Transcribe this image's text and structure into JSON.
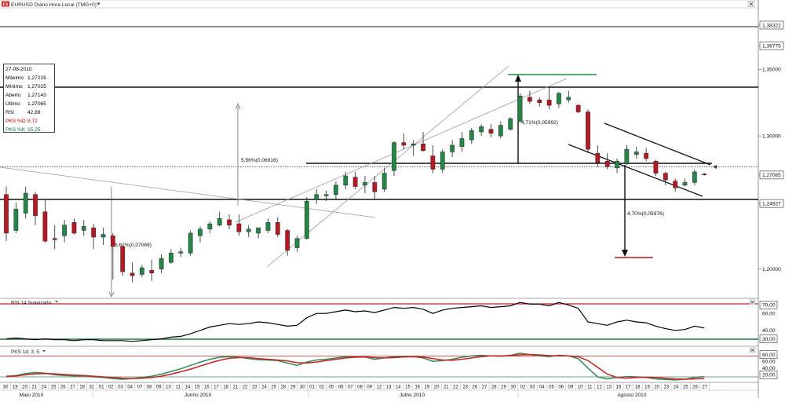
{
  "window": {
    "title": "EURUSD Diário Hora Local (TMG+0)",
    "logo_text": "FX"
  },
  "info_box": {
    "date": "27-08-2010",
    "rows": [
      {
        "label": "Máximo",
        "value": "1,27215",
        "color": "#000000"
      },
      {
        "label": "Mínimo",
        "value": "1,27025",
        "color": "#000000"
      },
      {
        "label": "Aberto",
        "value": "1,27143",
        "color": "#000000"
      },
      {
        "label": "Último",
        "value": "1,27065",
        "color": "#000000"
      },
      {
        "label": "RSI",
        "value": "42,89",
        "color": "#000000"
      },
      {
        "label": "PKS %D",
        "value": "8,72",
        "color": "#cc0000"
      },
      {
        "label": "PKS %K",
        "value": "15,25",
        "color": "#007a3d"
      }
    ]
  },
  "price_axis": {
    "labels": [
      "1,38322",
      "1,36775",
      "1,35000",
      "1,30000",
      "1,27065",
      "1,24927",
      "1,20000"
    ],
    "highlight_labels": [
      "1,38322",
      "1,36775",
      "1,27065",
      "1,24927"
    ]
  },
  "rsi_panel": {
    "title": "RSI 14 Suavizado",
    "axis_labels": [
      "70,00",
      "60,00",
      "40,00",
      "30,00"
    ],
    "highlight_labels": [
      "70,00",
      "30,00"
    ]
  },
  "pks_panel": {
    "title": "PKS 14; 3; 5",
    "axis_labels": [
      "80,00",
      "60,00",
      "40,00",
      "20,00"
    ],
    "highlight_labels": [
      "80,00",
      "20,00"
    ]
  },
  "date_axis": {
    "days": [
      "30",
      "19",
      "20",
      "21",
      "24",
      "25",
      "26",
      "27",
      "28",
      "31",
      "01",
      "02",
      "03",
      "04",
      "07",
      "08",
      "09",
      "10",
      "11",
      "14",
      "15",
      "16",
      "17",
      "18",
      "21",
      "22",
      "23",
      "24",
      "25",
      "28",
      "29",
      "30",
      "01",
      "02",
      "05",
      "06",
      "07",
      "08",
      "09",
      "12",
      "13",
      "14",
      "15",
      "16",
      "19",
      "20",
      "21",
      "22",
      "23",
      "26",
      "27",
      "28",
      "29",
      "30",
      "02",
      "03",
      "04",
      "05",
      "06",
      "09",
      "10",
      "11",
      "12",
      "13",
      "16",
      "17",
      "18",
      "19",
      "20",
      "23",
      "24",
      "25",
      "26",
      "27"
    ],
    "months": [
      "Maio 2010",
      "Junho 2010",
      "Julho 2010",
      "Agosto 2010"
    ]
  },
  "annotations": {
    "rise_pct": "5,56%(0,06916)",
    "fall_pct": "5,62%(0,07069)",
    "top_pct": "4,71%(0,05992)",
    "target_pct": "4,70%(0,05976)"
  },
  "colors": {
    "bull": "#1e8a44",
    "bear": "#c0141e",
    "rsi_line": "#000000",
    "pks_k": "#2e8b57",
    "pks_d": "#d11f1f",
    "channel": "#999999"
  },
  "chart_data": [
    {
      "type": "candlestick",
      "title": "EURUSD Diário",
      "dates": [
        "19 Mai",
        "20 Mai",
        "21 Mai",
        "24 Mai",
        "25 Mai",
        "26 Mai",
        "27 Mai",
        "28 Mai",
        "31 Mai",
        "01 Jun",
        "02 Jun",
        "03 Jun",
        "04 Jun",
        "07 Jun",
        "08 Jun",
        "09 Jun",
        "10 Jun",
        "11 Jun",
        "14 Jun",
        "15 Jun",
        "16 Jun",
        "17 Jun",
        "18 Jun",
        "21 Jun",
        "22 Jun",
        "23 Jun",
        "24 Jun",
        "25 Jun",
        "28 Jun",
        "29 Jun",
        "30 Jun",
        "01 Jul",
        "02 Jul",
        "05 Jul",
        "06 Jul",
        "07 Jul",
        "08 Jul",
        "09 Jul",
        "12 Jul",
        "13 Jul",
        "14 Jul",
        "15 Jul",
        "16 Jul",
        "19 Jul",
        "20 Jul",
        "21 Jul",
        "22 Jul",
        "23 Jul",
        "26 Jul",
        "27 Jul",
        "28 Jul",
        "29 Jul",
        "30 Jul",
        "02 Ago",
        "03 Ago",
        "04 Ago",
        "05 Ago",
        "06 Ago",
        "09 Ago",
        "10 Ago",
        "11 Ago",
        "12 Ago",
        "13 Ago",
        "16 Ago",
        "17 Ago",
        "18 Ago",
        "19 Ago",
        "20 Ago",
        "23 Ago",
        "24 Ago",
        "25 Ago",
        "26 Ago",
        "27 Ago"
      ],
      "ohlc": [
        [
          1.256,
          1.262,
          1.221,
          1.227
        ],
        [
          1.229,
          1.25,
          1.227,
          1.245
        ],
        [
          1.242,
          1.262,
          1.238,
          1.257
        ],
        [
          1.256,
          1.258,
          1.233,
          1.24
        ],
        [
          1.243,
          1.252,
          1.22,
          1.221
        ],
        [
          1.223,
          1.233,
          1.215,
          1.222
        ],
        [
          1.225,
          1.237,
          1.22,
          1.233
        ],
        [
          1.235,
          1.238,
          1.226,
          1.227
        ],
        [
          1.229,
          1.237,
          1.225,
          1.232
        ],
        [
          1.231,
          1.234,
          1.215,
          1.224
        ],
        [
          1.224,
          1.231,
          1.218,
          1.226
        ],
        [
          1.225,
          1.227,
          1.192,
          1.217
        ],
        [
          1.217,
          1.218,
          1.195,
          1.198
        ],
        [
          1.197,
          1.205,
          1.19,
          1.195
        ],
        [
          1.196,
          1.203,
          1.194,
          1.201
        ],
        [
          1.199,
          1.207,
          1.191,
          1.197
        ],
        [
          1.2,
          1.211,
          1.197,
          1.208
        ],
        [
          1.205,
          1.215,
          1.204,
          1.212
        ],
        [
          1.212,
          1.216,
          1.209,
          1.213
        ],
        [
          1.212,
          1.229,
          1.21,
          1.227
        ],
        [
          1.225,
          1.232,
          1.22,
          1.23
        ],
        [
          1.23,
          1.236,
          1.227,
          1.234
        ],
        [
          1.233,
          1.243,
          1.232,
          1.238
        ],
        [
          1.237,
          1.241,
          1.23,
          1.233
        ],
        [
          1.234,
          1.241,
          1.225,
          1.228
        ],
        [
          1.228,
          1.233,
          1.224,
          1.23
        ],
        [
          1.227,
          1.231,
          1.223,
          1.231
        ],
        [
          1.229,
          1.238,
          1.227,
          1.235
        ],
        [
          1.235,
          1.239,
          1.224,
          1.226
        ],
        [
          1.229,
          1.23,
          1.21,
          1.214
        ],
        [
          1.216,
          1.225,
          1.213,
          1.223
        ],
        [
          1.223,
          1.254,
          1.222,
          1.251
        ],
        [
          1.252,
          1.26,
          1.249,
          1.256
        ],
        [
          1.255,
          1.259,
          1.251,
          1.256
        ],
        [
          1.256,
          1.266,
          1.252,
          1.263
        ],
        [
          1.263,
          1.273,
          1.26,
          1.27
        ],
        [
          1.269,
          1.273,
          1.26,
          1.262
        ],
        [
          1.263,
          1.27,
          1.257,
          1.265
        ],
        [
          1.265,
          1.27,
          1.252,
          1.258
        ],
        [
          1.26,
          1.276,
          1.258,
          1.272
        ],
        [
          1.274,
          1.296,
          1.27,
          1.295
        ],
        [
          1.295,
          1.302,
          1.29,
          1.293
        ],
        [
          1.293,
          1.297,
          1.285,
          1.294
        ],
        [
          1.294,
          1.303,
          1.288,
          1.289
        ],
        [
          1.285,
          1.293,
          1.272,
          1.275
        ],
        [
          1.275,
          1.29,
          1.272,
          1.288
        ],
        [
          1.288,
          1.297,
          1.284,
          1.293
        ],
        [
          1.292,
          1.303,
          1.288,
          1.298
        ],
        [
          1.297,
          1.306,
          1.294,
          1.304
        ],
        [
          1.303,
          1.309,
          1.3,
          1.307
        ],
        [
          1.305,
          1.309,
          1.299,
          1.302
        ],
        [
          1.3,
          1.311,
          1.298,
          1.308
        ],
        [
          1.305,
          1.314,
          1.304,
          1.313
        ],
        [
          1.311,
          1.332,
          1.31,
          1.33
        ],
        [
          1.329,
          1.334,
          1.324,
          1.326
        ],
        [
          1.327,
          1.329,
          1.322,
          1.325
        ],
        [
          1.327,
          1.337,
          1.32,
          1.323
        ],
        [
          1.324,
          1.333,
          1.321,
          1.332
        ],
        [
          1.327,
          1.334,
          1.325,
          1.329
        ],
        [
          1.323,
          1.324,
          1.317,
          1.318
        ],
        [
          1.318,
          1.32,
          1.287,
          1.29
        ],
        [
          1.287,
          1.293,
          1.277,
          1.28
        ],
        [
          1.281,
          1.287,
          1.275,
          1.277
        ],
        [
          1.276,
          1.283,
          1.272,
          1.281
        ],
        [
          1.279,
          1.293,
          1.278,
          1.29
        ],
        [
          1.286,
          1.292,
          1.283,
          1.288
        ],
        [
          1.287,
          1.291,
          1.281,
          1.283
        ],
        [
          1.281,
          1.282,
          1.27,
          1.272
        ],
        [
          1.272,
          1.273,
          1.263,
          1.267
        ],
        [
          1.266,
          1.268,
          1.258,
          1.261
        ],
        [
          1.263,
          1.268,
          1.262,
          1.265
        ],
        [
          1.265,
          1.275,
          1.263,
          1.273
        ],
        [
          1.2714,
          1.2722,
          1.2703,
          1.2707
        ]
      ],
      "ylim": [
        1.178,
        1.395
      ]
    },
    {
      "type": "line",
      "title": "RSI 14 Suavizado",
      "series": [
        {
          "name": "RSI",
          "values": [
            30,
            31,
            30,
            29,
            30,
            29,
            29,
            28,
            29,
            29,
            28,
            28,
            28,
            27,
            28,
            29,
            30,
            32,
            33,
            36,
            40,
            44,
            46,
            48,
            47,
            48,
            50,
            49,
            47,
            45,
            46,
            55,
            60,
            60,
            62,
            64,
            62,
            63,
            61,
            64,
            67,
            66,
            67,
            65,
            60,
            64,
            66,
            67,
            68,
            69,
            67,
            68,
            69,
            73,
            71,
            71,
            69,
            73,
            70,
            66,
            50,
            48,
            46,
            50,
            52,
            50,
            49,
            45,
            42,
            40,
            41,
            45,
            43
          ]
        }
      ],
      "ylim": [
        25,
        75
      ]
    },
    {
      "type": "line",
      "title": "PKS 14; 3; 5",
      "series": [
        {
          "name": "%K",
          "values": [
            14,
            18,
            24,
            27,
            25,
            20,
            18,
            17,
            17,
            14,
            12,
            9,
            7,
            9,
            12,
            16,
            22,
            30,
            38,
            48,
            58,
            66,
            72,
            74,
            72,
            68,
            65,
            64,
            62,
            55,
            48,
            58,
            64,
            66,
            70,
            74,
            73,
            73,
            66,
            70,
            74,
            75,
            74,
            70,
            60,
            62,
            66,
            72,
            76,
            78,
            76,
            75,
            78,
            84,
            80,
            76,
            74,
            78,
            76,
            68,
            40,
            14,
            8,
            12,
            15,
            14,
            12,
            8,
            6,
            5,
            7,
            12,
            15
          ]
        },
        {
          "name": "%D",
          "values": [
            16,
            17,
            20,
            23,
            24,
            23,
            21,
            19,
            18,
            16,
            14,
            12,
            10,
            9,
            10,
            12,
            16,
            22,
            29,
            37,
            46,
            55,
            63,
            69,
            71,
            71,
            68,
            66,
            64,
            61,
            56,
            55,
            58,
            62,
            66,
            70,
            72,
            73,
            71,
            70,
            71,
            73,
            74,
            73,
            68,
            64,
            63,
            66,
            70,
            74,
            76,
            76,
            77,
            79,
            80,
            79,
            77,
            76,
            76,
            74,
            62,
            42,
            22,
            12,
            10,
            12,
            13,
            12,
            10,
            8,
            7,
            8,
            9
          ]
        }
      ],
      "ylim": [
        0,
        100
      ]
    }
  ]
}
